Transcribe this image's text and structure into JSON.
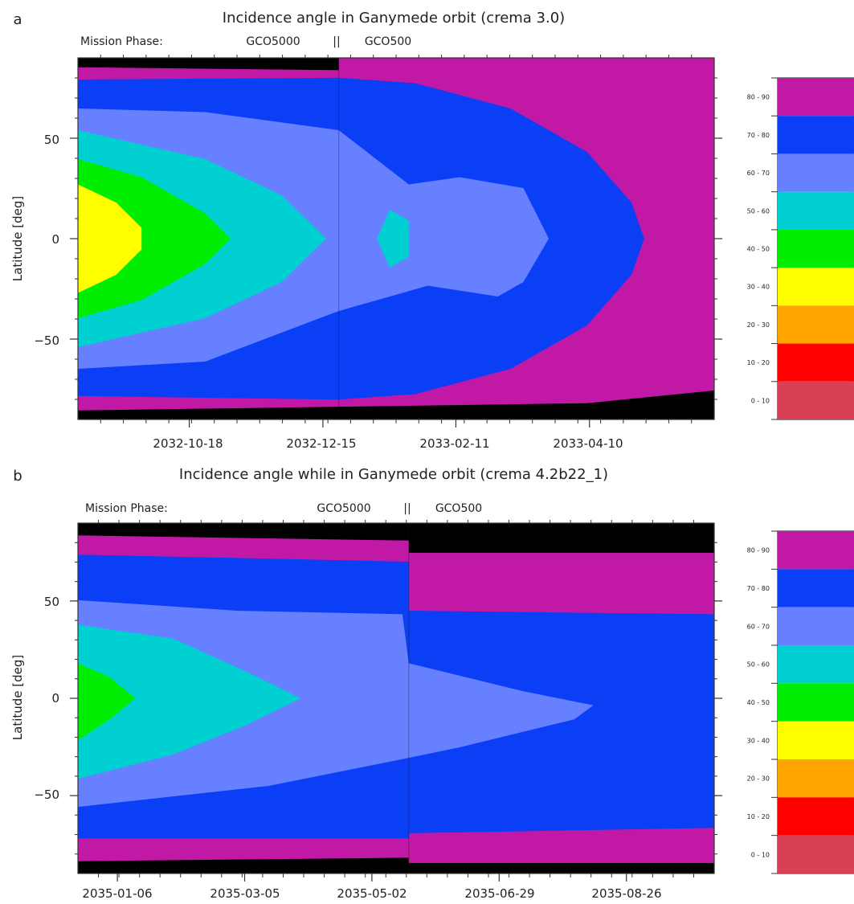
{
  "panels": [
    {
      "letter": "a",
      "chart_data": {
        "type": "heatmap",
        "title": "Incidence angle in Ganymede orbit (crema 3.0)",
        "ylabel": "Latitude [deg]",
        "ylim": [
          -90,
          90
        ],
        "yticks": [
          "50",
          "0",
          "−50"
        ],
        "xticks": [
          "2032-10-18",
          "2032-12-15",
          "2033-02-11",
          "2033-04-10"
        ],
        "mission_phase_label": "Mission Phase:",
        "phases": [
          "GCO5000",
          "GCO500"
        ],
        "phase_separator": "||",
        "regions": [
          {
            "bin": "80 - 90",
            "extent": "pole caps beyond about ±75 deg"
          },
          {
            "bin": "70 - 80",
            "extent": "outer band, reaching the equator near 2033-05-20"
          },
          {
            "bin": "60 - 70",
            "extent": "reaching the equator near 2033-03-05, bulge about -30 to 25 deg"
          },
          {
            "bin": "50 - 60",
            "extent": "reaching the equator near 2032-12-05; isolated patch near 2033-01-08"
          },
          {
            "bin": "40 - 50",
            "extent": "reaching the equator near 2032-11-03"
          },
          {
            "bin": "30 - 40",
            "extent": "core about ±27 deg to 2032-10-20"
          }
        ]
      }
    },
    {
      "letter": "b",
      "chart_data": {
        "type": "heatmap",
        "title": "Incidence angle while in Ganymede orbit (crema 4.2b22_1)",
        "ylabel": "Latitude [deg]",
        "ylim": [
          -90,
          90
        ],
        "yticks": [
          "50",
          "0",
          "−50"
        ],
        "xticks": [
          "2035-01-06",
          "2035-03-05",
          "2035-05-02",
          "2035-06-29",
          "2035-08-26"
        ],
        "mission_phase_label": "Mission Phase:",
        "phases": [
          "GCO5000",
          "GCO500"
        ],
        "phase_separator": "||",
        "regions": [
          {
            "bin": "80 - 90",
            "extent": "bands near ±80 deg; above about 45 deg after 2035-05-04"
          },
          {
            "bin": "70 - 80",
            "extent": "background band"
          },
          {
            "bin": "60 - 70",
            "extent": "reaching the equator near 2035-08-11"
          },
          {
            "bin": "50 - 60",
            "extent": "reaching the equator near 2035-04-01"
          },
          {
            "bin": "40 - 50",
            "extent": "core about ±16 deg to 2035-01-12"
          }
        ]
      }
    }
  ],
  "legend": {
    "bins": [
      "80 - 90",
      "70 - 80",
      "60 - 70",
      "50 - 60",
      "40 - 50",
      "30 - 40",
      "20 - 30",
      "10 - 20",
      "0 - 10"
    ],
    "colors": [
      "#c118a6",
      "#0b3ff5",
      "#6680ff",
      "#00d0d2",
      "#00ec00",
      "#ffff00",
      "#ffa500",
      "#ff0000",
      "#d93f55"
    ]
  },
  "colors": {
    "night": "#000000",
    "axis": "#333333"
  }
}
